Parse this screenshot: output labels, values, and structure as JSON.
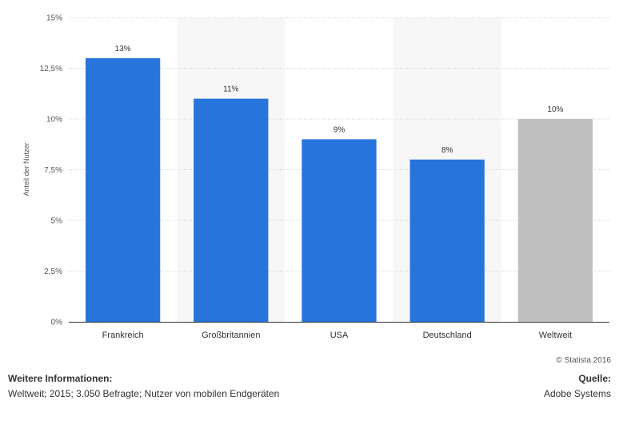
{
  "chart_data": {
    "type": "bar",
    "categories": [
      "Frankreich",
      "Großbritannien",
      "USA",
      "Deutschland",
      "Weltweit"
    ],
    "values": [
      13,
      11,
      9,
      8,
      10
    ],
    "data_labels": [
      "13%",
      "11%",
      "9%",
      "8%",
      "10%"
    ],
    "ylabel": "Anteil der Nutzer",
    "ylim": [
      0,
      15
    ],
    "yticks": [
      0,
      2.5,
      5,
      7.5,
      10,
      12.5,
      15
    ],
    "ytick_labels": [
      "0%",
      "2,5%",
      "5%",
      "7,5%",
      "10%",
      "12,5%",
      "15%"
    ],
    "grid": true,
    "colors": {
      "bar": "#2775dc",
      "highlight_bar": "#c0c0c0",
      "band": "#f7f7f7",
      "grid": "#cccccc"
    },
    "highlight_category": "Weltweit"
  },
  "copyright": "© Statista 2016",
  "info": {
    "title": "Weitere Informationen:",
    "text": "Weltweit; 2015; 3.050 Befragte; Nutzer von mobilen Endgeräten"
  },
  "source": {
    "title": "Quelle:",
    "text": "Adobe Systems"
  }
}
